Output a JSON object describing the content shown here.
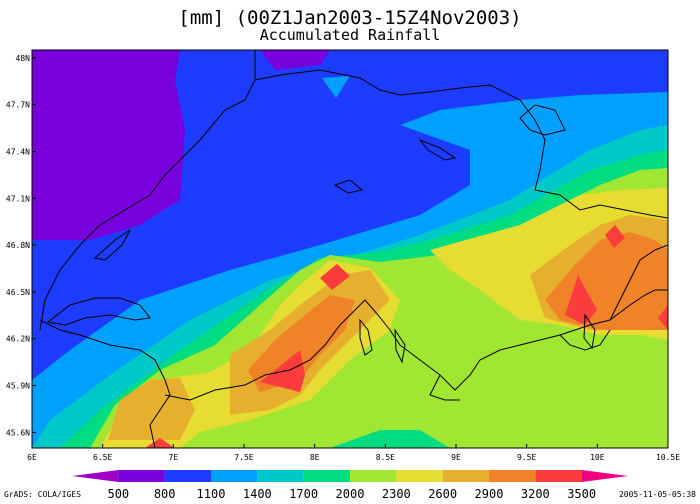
{
  "title": {
    "line1": "[mm] (00Z1Jan2003-15Z4Nov2003)",
    "line2": "Accumulated Rainfall"
  },
  "axes": {
    "x_ticks": [
      "6E",
      "6.5E",
      "7E",
      "7.5E",
      "8E",
      "8.5E",
      "9E",
      "9.5E",
      "10E",
      "10.5E"
    ],
    "y_ticks": [
      "48N",
      "47.7N",
      "47.4N",
      "47.1N",
      "46.8N",
      "46.5N",
      "46.2N",
      "45.9N",
      "45.6N"
    ],
    "x_range": [
      6.0,
      10.5
    ],
    "y_range": [
      45.5,
      48.05
    ]
  },
  "colorbar": {
    "labels": [
      "500",
      "800",
      "1100",
      "1400",
      "1700",
      "2000",
      "2300",
      "2600",
      "2900",
      "3200",
      "3500"
    ],
    "colors": [
      "#a000c8",
      "#7800dc",
      "#1e3cff",
      "#00a0ff",
      "#00c8c8",
      "#00dc82",
      "#a0e632",
      "#e6dc32",
      "#e6af2d",
      "#f08228",
      "#fa3c3c",
      "#f00082"
    ]
  },
  "footer": {
    "left": "GrADS: COLA/IGES",
    "right": "2005-11-05-05:38"
  },
  "map_colors": {
    "c0": "#7800dc",
    "c1": "#1e3cff",
    "c2": "#00a0ff",
    "c3": "#00c8c8",
    "c4": "#00dc82",
    "c5": "#a0e632",
    "c6": "#e6dc32",
    "c7": "#e6af2d",
    "c8": "#f08228",
    "c9": "#fa3c3c"
  }
}
